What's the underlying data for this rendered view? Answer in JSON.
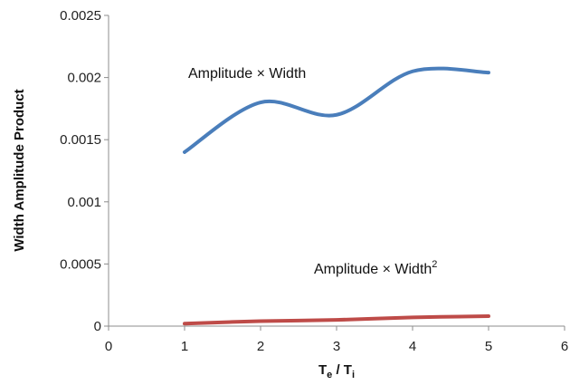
{
  "chart_data": {
    "type": "line",
    "title": "",
    "xlabel": {
      "main": "T",
      "sub1": "e",
      "sep": " / T",
      "sub2": "i"
    },
    "ylabel": "Width Amplitude Product",
    "xlim": [
      0,
      6
    ],
    "ylim": [
      0,
      0.0025
    ],
    "xticks": [
      0,
      1,
      2,
      3,
      4,
      5,
      6
    ],
    "xtick_labels": [
      "0",
      "1",
      "2",
      "3",
      "4",
      "5",
      "6"
    ],
    "yticks": [
      0,
      0.0005,
      0.001,
      0.0015,
      0.002,
      0.0025
    ],
    "ytick_labels": [
      "0",
      "0.0005",
      "0.001",
      "0.0015",
      "0.002",
      "0.0025"
    ],
    "grid": false,
    "legend": "none",
    "series": [
      {
        "name": "Amplitude × Width",
        "label_parts": {
          "text": "Amplitude × Width",
          "sup": ""
        },
        "color": "#4a7ebb",
        "x": [
          1,
          2,
          3,
          4,
          5
        ],
        "y": [
          0.0014,
          0.0018,
          0.0017,
          0.00205,
          0.00204
        ]
      },
      {
        "name": "Amplitude × Width²",
        "label_parts": {
          "text": "Amplitude × Width",
          "sup": "2"
        },
        "color": "#be4b48",
        "x": [
          1,
          2,
          3,
          4,
          5
        ],
        "y": [
          2e-05,
          4e-05,
          5e-05,
          7e-05,
          8e-05
        ]
      }
    ]
  }
}
